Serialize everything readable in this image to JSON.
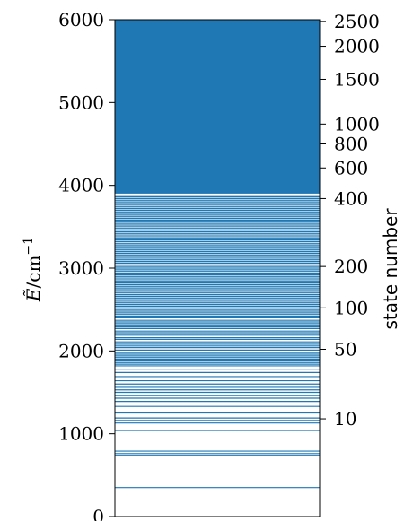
{
  "chart_data": {
    "type": "energy-level",
    "title": "",
    "ylabel": {
      "symbol": "Ẽ",
      "unit": "/cm",
      "exponent": "−1"
    },
    "right_axis_label": "state number",
    "ylim": [
      0,
      6000
    ],
    "left_ticks": [
      {
        "value": 0,
        "label": "0"
      },
      {
        "value": 1000,
        "label": "1000"
      },
      {
        "value": 2000,
        "label": "2000"
      },
      {
        "value": 3000,
        "label": "3000"
      },
      {
        "value": 4000,
        "label": "4000"
      },
      {
        "value": 5000,
        "label": "5000"
      },
      {
        "value": 6000,
        "label": "6000"
      }
    ],
    "right_ticks": [
      {
        "energy": 1180,
        "label": "10"
      },
      {
        "energy": 2020,
        "label": "50"
      },
      {
        "energy": 2520,
        "label": "100"
      },
      {
        "energy": 3020,
        "label": "200"
      },
      {
        "energy": 3840,
        "label": "400"
      },
      {
        "energy": 4210,
        "label": "600"
      },
      {
        "energy": 4500,
        "label": "800"
      },
      {
        "energy": 4740,
        "label": "1000"
      },
      {
        "energy": 5280,
        "label": "1500"
      },
      {
        "energy": 5680,
        "label": "2000"
      },
      {
        "energy": 5980,
        "label": "2500"
      }
    ],
    "line_color": "#1f77b4",
    "levels": [
      350,
      740,
      760,
      790,
      1040,
      1130,
      1160,
      1190,
      1250,
      1330,
      1390,
      1430,
      1460,
      1500,
      1530,
      1560,
      1600,
      1640,
      1690,
      1740,
      1780,
      1820,
      1840,
      1860,
      1880,
      1900,
      1920,
      1940,
      1960,
      1980,
      2010,
      2040,
      2060,
      2080,
      2110,
      2140,
      2160,
      2190,
      2220,
      2240,
      2270,
      2290,
      2310,
      2330,
      2350,
      2370,
      2400,
      2420,
      2440,
      2460,
      2480,
      2500,
      2520,
      2540,
      2560,
      2580,
      2600,
      2620,
      2640,
      2660,
      2680,
      2700,
      2720,
      2740,
      2760,
      2780,
      2800,
      2820,
      2840,
      2860,
      2880,
      2900,
      2920,
      2940,
      2960,
      2980,
      3000,
      3020,
      3040,
      3060,
      3080,
      3100,
      3120,
      3140,
      3160,
      3180,
      3200,
      3220,
      3240,
      3260,
      3280,
      3300,
      3320,
      3340,
      3360,
      3380,
      3400,
      3420,
      3440,
      3460,
      3480,
      3500,
      3520,
      3540,
      3560,
      3580,
      3600,
      3620,
      3640,
      3660,
      3680,
      3700,
      3720,
      3740,
      3760,
      3780,
      3800,
      3820,
      3840,
      3860,
      3880
    ],
    "continuum_from": 3900
  }
}
